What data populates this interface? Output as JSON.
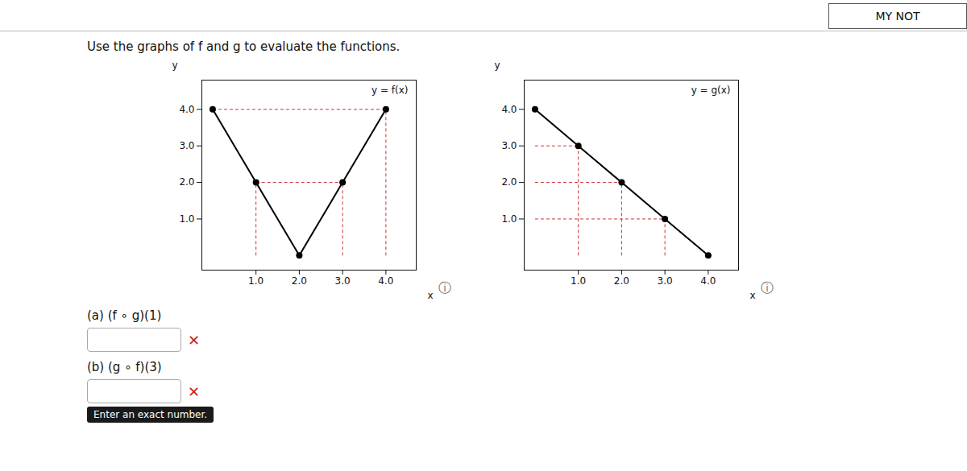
{
  "title": "Use the graphs of f and g to evaluate the functions.",
  "annotations": [
    {
      "text": "MY NOT"
    },
    {
      "text": "(a)  (f ∘ g)(1)"
    },
    {
      "text": "✕",
      "color": "#cc2222"
    },
    {
      "text": "(b)  (g ∘ f)(3)"
    },
    {
      "text": "✕",
      "color": "#cc2222"
    },
    {
      "text": "Enter an exact number."
    }
  ],
  "chart_data": [
    {
      "type": "line",
      "annotations": [
        "y = f(x)",
        "ⓘ"
      ],
      "x": [
        0,
        1,
        2,
        3,
        4
      ],
      "values": [
        4,
        2,
        0,
        2,
        4
      ],
      "color": "#000000",
      "marker": "circle",
      "xlabel": "x",
      "ylabel": "y",
      "xlim": [
        -0.25,
        4.7
      ],
      "ylim": [
        -0.4,
        4.8
      ],
      "xticks": [
        1,
        2,
        3,
        4
      ],
      "yticks": [
        1,
        2,
        3,
        4
      ],
      "grid": false,
      "guides": {
        "color": "#cc3333",
        "line_style": "dashed",
        "segments": [
          [
            0,
            4,
            4,
            4
          ],
          [
            1,
            2,
            3,
            2
          ],
          [
            1,
            0,
            1,
            2
          ],
          [
            3,
            0,
            3,
            2
          ],
          [
            4,
            0,
            4,
            4
          ]
        ]
      }
    },
    {
      "type": "line",
      "annotations": [
        "y = g(x)",
        "ⓘ"
      ],
      "x": [
        0,
        1,
        2,
        3,
        4
      ],
      "values": [
        4,
        3,
        2,
        1,
        0
      ],
      "color": "#000000",
      "marker": "circle",
      "xlabel": "x",
      "ylabel": "y",
      "xlim": [
        -0.25,
        4.7
      ],
      "ylim": [
        -0.4,
        4.8
      ],
      "xticks": [
        1,
        2,
        3,
        4
      ],
      "yticks": [
        1,
        2,
        3,
        4
      ],
      "grid": false,
      "guides": {
        "color": "#cc3333",
        "line_style": "dashed",
        "segments": [
          [
            0,
            3,
            1,
            3
          ],
          [
            0,
            2,
            2,
            2
          ],
          [
            0,
            1,
            3,
            1
          ],
          [
            1,
            0,
            1,
            3
          ],
          [
            2,
            0,
            2,
            2
          ],
          [
            3,
            0,
            3,
            1
          ]
        ]
      }
    }
  ]
}
